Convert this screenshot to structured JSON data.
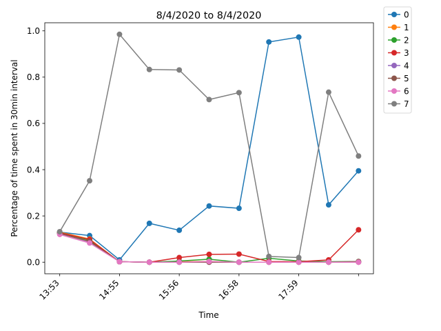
{
  "chart_data": {
    "type": "line",
    "title": "8/4/2020 to 8/4/2020",
    "xlabel": "Time",
    "ylabel": "Percentage of time spent in 30min interval",
    "x_tick_labels": [
      "13:53",
      "14:55",
      "15:56",
      "16:58",
      "17:59",
      ""
    ],
    "x_tick_positions": [
      0,
      2,
      4,
      6,
      8,
      10
    ],
    "x": [
      0,
      1,
      2,
      3,
      4,
      5,
      6,
      7,
      8,
      9,
      10
    ],
    "xlim": [
      -0.5,
      10.5
    ],
    "ylim": [
      -0.05,
      1.035
    ],
    "y_ticks": [
      0.0,
      0.2,
      0.4,
      0.6,
      0.8,
      1.0
    ],
    "y_tick_labels": [
      "0.0",
      "0.2",
      "0.4",
      "0.6",
      "0.8",
      "1.0"
    ],
    "grid": false,
    "legend_position": "outside-top-right",
    "series": [
      {
        "name": "0",
        "color": "#1f77b4",
        "values": [
          0.13,
          0.115,
          0.01,
          0.168,
          0.138,
          0.243,
          0.233,
          0.952,
          0.973,
          0.248,
          0.395
        ]
      },
      {
        "name": "1",
        "color": "#ff7f0e",
        "values": [
          0.13,
          0.1,
          0.002,
          0.0,
          0.002,
          0.003,
          0.0,
          0.0,
          0.0,
          0.0,
          0.0
        ]
      },
      {
        "name": "2",
        "color": "#2ca02c",
        "values": [
          0.128,
          0.095,
          0.002,
          0.0,
          0.005,
          0.013,
          0.0,
          0.017,
          0.005,
          0.002,
          0.003
        ]
      },
      {
        "name": "3",
        "color": "#d62728",
        "values": [
          0.127,
          0.098,
          0.002,
          0.0,
          0.02,
          0.034,
          0.035,
          0.003,
          0.002,
          0.01,
          0.14
        ]
      },
      {
        "name": "4",
        "color": "#9467bd",
        "values": [
          0.125,
          0.088,
          0.002,
          0.0,
          0.0,
          0.0,
          0.0,
          0.0,
          0.0,
          0.0,
          0.0
        ]
      },
      {
        "name": "5",
        "color": "#8c564b",
        "values": [
          0.124,
          0.09,
          0.002,
          0.0,
          0.0,
          0.0,
          0.0,
          0.0,
          0.0,
          0.0,
          0.003
        ]
      },
      {
        "name": "6",
        "color": "#e377c2",
        "values": [
          0.12,
          0.083,
          0.002,
          0.0,
          0.0,
          0.003,
          0.0,
          0.0,
          0.0,
          0.0,
          0.0
        ]
      },
      {
        "name": "7",
        "color": "#7f7f7f",
        "values": [
          0.132,
          0.352,
          0.985,
          0.833,
          0.831,
          0.703,
          0.733,
          0.025,
          0.02,
          0.735,
          0.459
        ]
      }
    ]
  }
}
